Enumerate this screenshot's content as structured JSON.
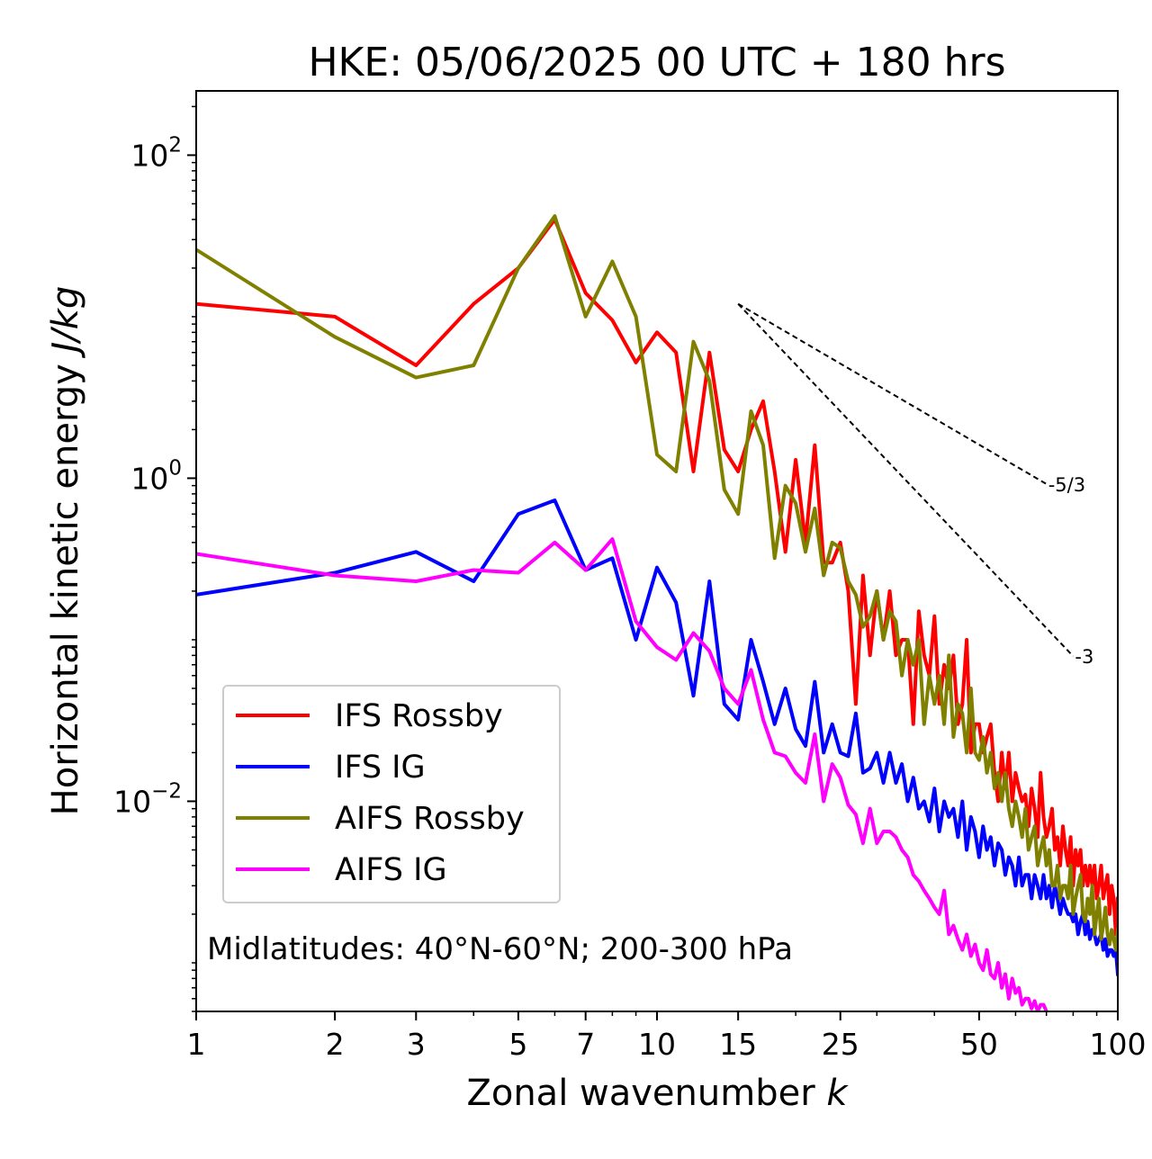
{
  "chart_data": {
    "type": "line",
    "title": "HKE: 05/06/2025 00 UTC + 180 hrs",
    "xlabel": "Zonal wavenumber",
    "xlabel_var": "k",
    "ylabel": "Horizontal kinetic energy",
    "ylabel_units": "J/kg",
    "xscale": "log",
    "yscale": "log",
    "xlim": [
      1,
      100
    ],
    "ylim": [
      0.0005,
      250
    ],
    "x_ticks": [
      1,
      2,
      3,
      5,
      7,
      10,
      15,
      25,
      50,
      100
    ],
    "x_tick_labels": [
      "1",
      "2",
      "3",
      "5",
      "7",
      "10",
      "15",
      "25",
      "50",
      "100"
    ],
    "y_ticks": [
      0.01,
      1,
      100
    ],
    "y_tick_labels": [
      {
        "base": "10",
        "exp": "−2"
      },
      {
        "base": "10",
        "exp": "0"
      },
      {
        "base": "10",
        "exp": "2"
      }
    ],
    "grid": false,
    "legend_position": "lower-left",
    "annotation": "Midlatitudes: 40°N-60°N; 200-300 hPa",
    "reference_slopes": [
      {
        "label": "-5/3",
        "slope": -1.6667,
        "x_start": 15,
        "y_start": 12,
        "x_end": 70
      },
      {
        "label": "-3",
        "slope": -3,
        "x_start": 15,
        "y_start": 12,
        "x_end": 80
      }
    ],
    "series": [
      {
        "name": "IFS Rossby",
        "color": "#ff0000",
        "x": [
          1,
          2,
          3,
          4,
          5,
          6,
          7,
          8,
          9,
          10,
          11,
          12,
          13,
          14,
          15,
          16,
          17,
          18,
          19,
          20,
          21,
          22,
          23,
          24,
          25,
          26,
          27,
          28,
          29,
          30,
          31,
          32,
          33,
          34,
          35,
          36,
          37,
          38,
          39,
          40,
          41,
          42,
          43,
          44,
          45,
          46,
          47,
          48,
          49,
          50,
          51,
          52,
          53,
          54,
          55,
          56,
          57,
          58,
          59,
          60,
          61,
          62,
          63,
          64,
          65,
          66,
          67,
          68,
          69,
          70,
          71,
          72,
          73,
          74,
          75,
          76,
          77,
          78,
          79,
          80,
          81,
          82,
          83,
          84,
          85,
          86,
          87,
          88,
          89,
          90,
          91,
          92,
          93,
          94,
          95,
          96,
          97,
          98,
          99,
          100
        ],
        "y": [
          12,
          10,
          5,
          12,
          20,
          40,
          14,
          9.5,
          5.2,
          8,
          6,
          1.1,
          6,
          1.5,
          1.1,
          2,
          3,
          1.1,
          0.35,
          1.3,
          0.4,
          1.6,
          0.3,
          0.3,
          0.4,
          0.2,
          0.04,
          0.25,
          0.08,
          0.2,
          0.1,
          0.2,
          0.08,
          0.1,
          0.1,
          0.03,
          0.15,
          0.08,
          0.06,
          0.14,
          0.04,
          0.07,
          0.05,
          0.08,
          0.03,
          0.04,
          0.1,
          0.02,
          0.03,
          0.03,
          0.02,
          0.025,
          0.03,
          0.015,
          0.01,
          0.02,
          0.012,
          0.02,
          0.01,
          0.015,
          0.012,
          0.01,
          0.011,
          0.007,
          0.012,
          0.009,
          0.006,
          0.015,
          0.008,
          0.006,
          0.007,
          0.009,
          0.005,
          0.006,
          0.004,
          0.007,
          0.005,
          0.004,
          0.006,
          0.003,
          0.005,
          0.004,
          0.005,
          0.003,
          0.004,
          0.003,
          0.004,
          0.003,
          0.004,
          0.0025,
          0.003,
          0.004,
          0.0025,
          0.003,
          0.0035,
          0.002,
          0.003,
          0.0025,
          0.0015,
          0.0025
        ]
      },
      {
        "name": "IFS IG",
        "color": "#0000ff",
        "x": [
          1,
          2,
          3,
          4,
          5,
          6,
          7,
          8,
          9,
          10,
          11,
          12,
          13,
          14,
          15,
          16,
          17,
          18,
          19,
          20,
          21,
          22,
          23,
          24,
          25,
          26,
          27,
          28,
          29,
          30,
          31,
          32,
          33,
          34,
          35,
          36,
          37,
          38,
          39,
          40,
          41,
          42,
          43,
          44,
          45,
          46,
          47,
          48,
          49,
          50,
          51,
          52,
          53,
          54,
          55,
          56,
          57,
          58,
          59,
          60,
          61,
          62,
          63,
          64,
          65,
          66,
          67,
          68,
          69,
          70,
          71,
          72,
          73,
          74,
          75,
          76,
          77,
          78,
          79,
          80,
          81,
          82,
          83,
          84,
          85,
          86,
          87,
          88,
          89,
          90,
          91,
          92,
          93,
          94,
          95,
          96,
          97,
          98,
          99,
          100
        ],
        "y": [
          0.19,
          0.26,
          0.35,
          0.23,
          0.6,
          0.73,
          0.27,
          0.32,
          0.1,
          0.28,
          0.17,
          0.045,
          0.23,
          0.04,
          0.032,
          0.1,
          0.055,
          0.03,
          0.05,
          0.028,
          0.022,
          0.055,
          0.02,
          0.03,
          0.02,
          0.019,
          0.035,
          0.015,
          0.016,
          0.02,
          0.013,
          0.02,
          0.013,
          0.017,
          0.01,
          0.014,
          0.009,
          0.01,
          0.0075,
          0.012,
          0.0065,
          0.01,
          0.008,
          0.009,
          0.006,
          0.01,
          0.005,
          0.008,
          0.0065,
          0.0045,
          0.007,
          0.005,
          0.006,
          0.004,
          0.0055,
          0.005,
          0.0035,
          0.0045,
          0.004,
          0.003,
          0.0045,
          0.003,
          0.0035,
          0.0035,
          0.0025,
          0.0035,
          0.003,
          0.0025,
          0.0035,
          0.0025,
          0.003,
          0.0022,
          0.003,
          0.0025,
          0.002,
          0.0025,
          0.0022,
          0.002,
          0.002,
          0.0018,
          0.002,
          0.0015,
          0.0018,
          0.002,
          0.0015,
          0.0018,
          0.0014,
          0.0016,
          0.0015,
          0.0013,
          0.0014,
          0.0015,
          0.0012,
          0.0014,
          0.0011,
          0.0012,
          0.0012,
          0.0011,
          0.0012,
          0.00085
        ]
      },
      {
        "name": "AIFS Rossby",
        "color": "#808000",
        "x": [
          1,
          2,
          3,
          4,
          5,
          6,
          7,
          8,
          9,
          10,
          11,
          12,
          13,
          14,
          15,
          16,
          17,
          18,
          19,
          20,
          21,
          22,
          23,
          24,
          25,
          26,
          27,
          28,
          29,
          30,
          31,
          32,
          33,
          34,
          35,
          36,
          37,
          38,
          39,
          40,
          41,
          42,
          43,
          44,
          45,
          46,
          47,
          48,
          49,
          50,
          51,
          52,
          53,
          54,
          55,
          56,
          57,
          58,
          59,
          60,
          61,
          62,
          63,
          64,
          65,
          66,
          67,
          68,
          69,
          70,
          71,
          72,
          73,
          74,
          75,
          76,
          77,
          78,
          79,
          80,
          81,
          82,
          83,
          84,
          85,
          86,
          87,
          88,
          89,
          90,
          91,
          92,
          93,
          94,
          95,
          96,
          97,
          98,
          99,
          100
        ],
        "y": [
          26,
          7.5,
          4.2,
          5,
          20,
          42,
          10,
          22,
          10,
          1.4,
          1.1,
          7,
          4,
          0.85,
          0.6,
          2.6,
          1.6,
          0.32,
          0.9,
          0.7,
          0.35,
          0.65,
          0.25,
          0.4,
          0.37,
          0.23,
          0.19,
          0.12,
          0.14,
          0.2,
          0.1,
          0.15,
          0.13,
          0.06,
          0.1,
          0.07,
          0.1,
          0.03,
          0.06,
          0.04,
          0.06,
          0.03,
          0.08,
          0.025,
          0.04,
          0.035,
          0.02,
          0.05,
          0.02,
          0.018,
          0.025,
          0.015,
          0.02,
          0.012,
          0.015,
          0.01,
          0.015,
          0.009,
          0.007,
          0.01,
          0.008,
          0.006,
          0.009,
          0.005,
          0.006,
          0.007,
          0.004,
          0.005,
          0.006,
          0.004,
          0.005,
          0.003,
          0.003,
          0.004,
          0.0025,
          0.003,
          0.003,
          0.0025,
          0.004,
          0.002,
          0.0025,
          0.003,
          0.0035,
          0.002,
          0.0018,
          0.0025,
          0.002,
          0.003,
          0.0015,
          0.002,
          0.0025,
          0.0014,
          0.0017,
          0.0022,
          0.0015,
          0.0013,
          0.0016,
          0.0014,
          0.0012,
          0.0016
        ]
      },
      {
        "name": "AIFS IG",
        "color": "#ff00ff",
        "x": [
          1,
          2,
          3,
          4,
          5,
          6,
          7,
          8,
          9,
          10,
          11,
          12,
          13,
          14,
          15,
          16,
          17,
          18,
          19,
          20,
          21,
          22,
          23,
          24,
          25,
          26,
          27,
          28,
          29,
          30,
          31,
          32,
          33,
          34,
          35,
          36,
          37,
          38,
          39,
          40,
          41,
          42,
          43,
          44,
          45,
          46,
          47,
          48,
          49,
          50,
          51,
          52,
          53,
          54,
          55,
          56,
          57,
          58,
          59,
          60,
          61,
          62,
          63,
          64,
          65,
          66,
          67,
          68,
          69,
          70
        ],
        "y": [
          0.34,
          0.25,
          0.23,
          0.27,
          0.26,
          0.4,
          0.27,
          0.42,
          0.13,
          0.09,
          0.075,
          0.11,
          0.085,
          0.05,
          0.04,
          0.065,
          0.032,
          0.02,
          0.019,
          0.015,
          0.013,
          0.026,
          0.01,
          0.017,
          0.014,
          0.0095,
          0.0083,
          0.0055,
          0.009,
          0.0055,
          0.0065,
          0.0065,
          0.006,
          0.005,
          0.0045,
          0.0035,
          0.0032,
          0.0028,
          0.0025,
          0.0022,
          0.002,
          0.0028,
          0.0015,
          0.0017,
          0.0014,
          0.0012,
          0.0015,
          0.0011,
          0.0013,
          0.001,
          0.0009,
          0.0012,
          0.00085,
          0.0008,
          0.001,
          0.0007,
          0.00085,
          0.0006,
          0.0008,
          0.00065,
          0.0007,
          0.00055,
          0.0006,
          0.0006,
          0.00052,
          0.00058,
          0.0005,
          0.00055,
          0.00055,
          0.0005
        ]
      }
    ]
  }
}
